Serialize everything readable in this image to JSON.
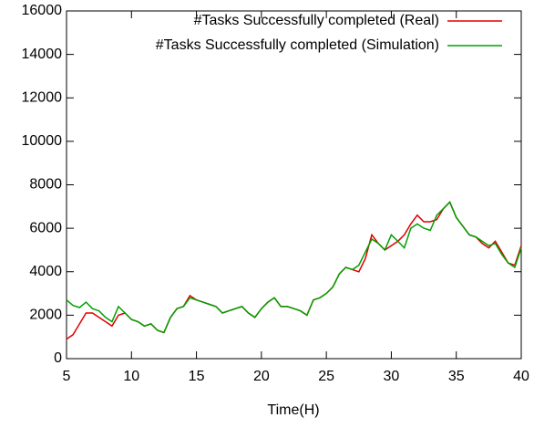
{
  "chart_data": {
    "type": "line",
    "xlabel": "Time(H)",
    "x": [
      5,
      5.5,
      6,
      6.5,
      7,
      7.5,
      8,
      8.5,
      9,
      9.5,
      10,
      10.5,
      11,
      11.5,
      12,
      12.5,
      13,
      13.5,
      14,
      14.5,
      15,
      15.5,
      16,
      16.5,
      17,
      17.5,
      18,
      18.5,
      19,
      19.5,
      20,
      20.5,
      21,
      21.5,
      22,
      22.5,
      23,
      23.5,
      24,
      24.5,
      25,
      25.5,
      26,
      26.5,
      27,
      27.5,
      28,
      28.5,
      29,
      29.5,
      30,
      30.5,
      31,
      31.5,
      32,
      32.5,
      33,
      33.5,
      34,
      34.5,
      35,
      35.5,
      36,
      36.5,
      37,
      37.5,
      38,
      38.5,
      39,
      39.5,
      40
    ],
    "series": [
      {
        "name": "#Tasks Successfully completed (Real)",
        "color": "#e00000",
        "values": [
          900,
          1100,
          1600,
          2100,
          2100,
          1900,
          1700,
          1500,
          2000,
          2100,
          1800,
          1700,
          1500,
          1600,
          1300,
          1200,
          1900,
          2300,
          2400,
          2900,
          2700,
          2600,
          2500,
          2400,
          2100,
          2200,
          2300,
          2400,
          2100,
          1900,
          2300,
          2600,
          2800,
          2400,
          2400,
          2300,
          2200,
          2000,
          2700,
          2800,
          3000,
          3300,
          3900,
          4200,
          4100,
          4000,
          4600,
          5700,
          5300,
          5000,
          5200,
          5400,
          5700,
          6200,
          6600,
          6300,
          6300,
          6400,
          6900,
          7200,
          6500,
          6100,
          5700,
          5600,
          5300,
          5100,
          5400,
          4900,
          4400,
          4300,
          5200
        ]
      },
      {
        "name": "#Tasks Successfully completed (Simulation)",
        "color": "#00a000",
        "values": [
          2700,
          2450,
          2350,
          2600,
          2300,
          2200,
          1900,
          1700,
          2400,
          2100,
          1800,
          1700,
          1500,
          1600,
          1300,
          1200,
          1900,
          2300,
          2400,
          2800,
          2700,
          2600,
          2500,
          2400,
          2100,
          2200,
          2300,
          2400,
          2100,
          1900,
          2300,
          2600,
          2800,
          2400,
          2400,
          2300,
          2200,
          2000,
          2700,
          2800,
          3000,
          3300,
          3900,
          4200,
          4100,
          4300,
          4900,
          5500,
          5300,
          5000,
          5700,
          5400,
          5100,
          6000,
          6200,
          6000,
          5900,
          6600,
          6900,
          7200,
          6500,
          6100,
          5700,
          5600,
          5400,
          5200,
          5300,
          4800,
          4400,
          4200,
          5100
        ]
      }
    ],
    "xlim": [
      5,
      40
    ],
    "xticks": [
      5,
      10,
      15,
      20,
      25,
      30,
      35,
      40
    ],
    "ylim": [
      0,
      16000
    ],
    "yticks": [
      0,
      2000,
      4000,
      6000,
      8000,
      10000,
      12000,
      14000,
      16000
    ],
    "legend": "top-right",
    "grid": false
  }
}
